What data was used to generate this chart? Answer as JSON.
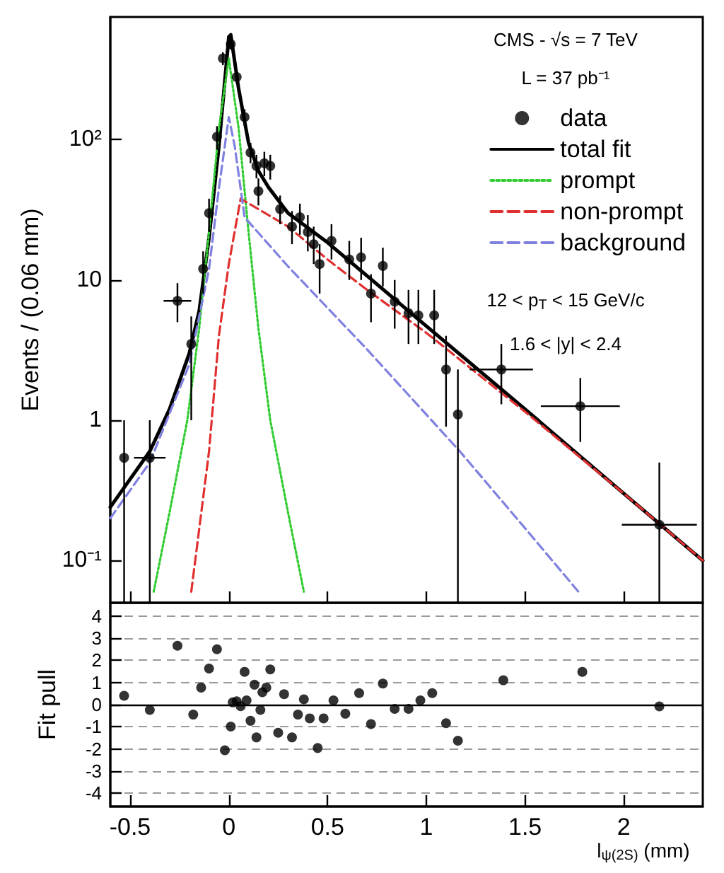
{
  "chart_data": [
    {
      "type": "scatter",
      "ylabel": "Events / (0.06 mm)",
      "xlim": [
        -0.6,
        2.4
      ],
      "xticks": [
        -0.5,
        0,
        0.5,
        1,
        1.5,
        2
      ],
      "ylim": [
        0.05,
        750
      ],
      "yticks": [
        {
          "value": 0.1,
          "label": "10⁻¹"
        },
        1,
        10,
        {
          "value": 100,
          "label": "10²"
        }
      ],
      "log": "y",
      "tick_labels": "y",
      "legend": "top right",
      "annotations": [
        "CMS - √s = 7 TeV",
        "L = 37 pb⁻¹",
        "12 < p$_{T}$ < 15 GeV/c",
        "1.6 < |y| < 2.4"
      ],
      "series": [
        {
          "name": "data",
          "type": "scatter",
          "marker": "circle",
          "color": "#000000",
          "x": [
            -0.53,
            -0.4,
            -0.26,
            -0.19,
            -0.13,
            -0.1,
            -0.06,
            -0.03,
            0.01,
            0.04,
            0.08,
            0.11,
            0.14,
            0.15,
            0.18,
            0.21,
            0.26,
            0.32,
            0.36,
            0.4,
            0.43,
            0.46,
            0.52,
            0.61,
            0.67,
            0.72,
            0.78,
            0.84,
            0.91,
            0.96,
            1.04,
            1.1,
            1.16,
            1.38,
            1.78,
            2.18
          ],
          "values": [
            0.54,
            0.54,
            7.1,
            3.5,
            12,
            30,
            105,
            380,
            480,
            280,
            145,
            81,
            65,
            43,
            68,
            65,
            32,
            24,
            28,
            22,
            18,
            13,
            19,
            14,
            14.5,
            8,
            12.6,
            7,
            5.8,
            5.6,
            5.6,
            2.3,
            1.1,
            2.3,
            1.26,
            0.18
          ],
          "errors": [
            [
              0.05,
              1.0
            ],
            [
              0.05,
              1.0
            ],
            [
              5,
              9.5
            ],
            [
              1.0,
              5.5
            ],
            [
              8,
              16
            ],
            [
              22,
              38
            ],
            [
              85,
              125
            ],
            [
              340,
              420
            ],
            [
              440,
              530
            ],
            [
              250,
              310
            ],
            [
              125,
              165
            ],
            [
              68,
              95
            ],
            [
              53,
              78
            ],
            [
              34,
              53
            ],
            [
              55,
              82
            ],
            [
              52,
              78
            ],
            [
              25,
              40
            ],
            [
              18,
              31
            ],
            [
              21,
              35
            ],
            [
              16,
              29
            ],
            [
              13,
              24
            ],
            [
              8,
              18
            ],
            [
              14,
              25
            ],
            [
              10,
              19
            ],
            [
              10,
              20
            ],
            [
              5,
              11
            ],
            [
              9,
              17
            ],
            [
              4.5,
              10
            ],
            [
              3.5,
              8.5
            ],
            [
              3.5,
              8.5
            ],
            [
              3.5,
              8.5
            ],
            [
              0.9,
              4
            ],
            [
              0.05,
              2.3
            ],
            [
              1.3,
              3.5
            ],
            [
              0.7,
              2
            ],
            [
              0.05,
              0.5
            ]
          ],
          "xerrors": [
            null,
            0.08,
            0.07,
            null,
            null,
            null,
            null,
            null,
            null,
            null,
            null,
            null,
            null,
            null,
            null,
            null,
            null,
            null,
            null,
            null,
            null,
            null,
            null,
            null,
            null,
            null,
            null,
            null,
            null,
            null,
            null,
            null,
            null,
            0.16,
            0.2,
            0.19
          ]
        },
        {
          "name": "total fit",
          "type": "line",
          "marker": "none",
          "line_style": "solid",
          "color": "#000000",
          "x": [
            -0.6,
            -0.5,
            -0.4,
            -0.3,
            -0.2,
            -0.15,
            -0.1,
            -0.05,
            0,
            0.01,
            0.05,
            0.1,
            0.15,
            0.2,
            0.3,
            0.5,
            0.7,
            1.0,
            1.5,
            2.0,
            2.4
          ],
          "values": [
            0.24,
            0.38,
            0.6,
            1.2,
            3,
            6,
            20,
            90,
            540,
            560,
            230,
            95,
            60,
            46,
            30,
            18.5,
            10.7,
            4.7,
            1.2,
            0.3,
            0.1
          ]
        },
        {
          "name": "prompt",
          "type": "line",
          "marker": "none",
          "line_style": "dotted",
          "color": "#33cc33",
          "x": [
            -0.38,
            -0.3,
            -0.21,
            -0.15,
            -0.1,
            -0.05,
            0,
            0.05,
            0.1,
            0.15,
            0.21,
            0.3,
            0.38
          ],
          "values": [
            0.06,
            0.22,
            1,
            4.5,
            22,
            120,
            380,
            120,
            22,
            4.5,
            1,
            0.22,
            0.06
          ]
        },
        {
          "name": "non-prompt",
          "type": "line",
          "marker": "none",
          "line_style": "dashed",
          "color": "#e03030",
          "x": [
            -0.19,
            -0.1,
            -0.05,
            0,
            0.06,
            0.3,
            0.5,
            0.7,
            1.0,
            1.5,
            2.0,
            2.4
          ],
          "values": [
            0.06,
            0.6,
            4,
            13,
            38,
            24,
            14,
            8.5,
            4.2,
            1.15,
            0.3,
            0.1
          ]
        },
        {
          "name": "background",
          "type": "line",
          "marker": "none",
          "line_style": "dashed",
          "color": "#8080e0",
          "x": [
            -0.6,
            -0.4,
            -0.2,
            -0.1,
            -0.05,
            0,
            0.03,
            0.08,
            0.3,
            0.7,
            1.17,
            1.5,
            1.77
          ],
          "values": [
            0.2,
            0.5,
            2.5,
            12,
            45,
            145,
            90,
            28,
            12.5,
            3.2,
            0.6,
            0.17,
            0.06
          ]
        }
      ]
    },
    {
      "type": "scatter",
      "ylabel": "Fit pull",
      "xlabel": "l$_{ψ(2S)}$ (mm)",
      "xlim": [
        -0.6,
        2.4
      ],
      "xticks": [
        -0.5,
        0,
        0.5,
        1,
        1.5,
        2
      ],
      "ylim": [
        -4.6,
        4.6
      ],
      "yticks": [
        -4,
        -3,
        -2,
        -1,
        0,
        1,
        2,
        3,
        4
      ],
      "grid": "y",
      "marker": "circle",
      "color": "#000000",
      "ref_lines": [
        {
          "axis": "y",
          "value": 0,
          "color": "#000000",
          "line_style": "solid"
        }
      ],
      "x": [
        -0.53,
        -0.4,
        -0.26,
        -0.18,
        -0.14,
        -0.1,
        -0.06,
        -0.02,
        0.01,
        0.02,
        0.04,
        0.06,
        0.08,
        0.09,
        0.11,
        0.13,
        0.14,
        0.16,
        0.17,
        0.19,
        0.21,
        0.25,
        0.28,
        0.32,
        0.35,
        0.38,
        0.41,
        0.45,
        0.48,
        0.53,
        0.59,
        0.66,
        0.72,
        0.78,
        0.84,
        0.91,
        0.97,
        1.03,
        1.1,
        1.16,
        1.39,
        1.79,
        2.18
      ],
      "values": [
        0.4,
        -0.24,
        2.66,
        -0.45,
        0.77,
        1.63,
        2.5,
        -2.06,
        -0.99,
        0.1,
        0.15,
        -0.07,
        1.48,
        0.19,
        -0.73,
        0.9,
        -1.48,
        -0.24,
        0.56,
        0.77,
        1.59,
        -1.27,
        0.47,
        -1.48,
        -0.45,
        0.24,
        -0.62,
        -1.96,
        -0.62,
        0.19,
        -0.41,
        0.52,
        -0.88,
        0.95,
        -0.19,
        -0.19,
        0.19,
        0.52,
        -0.84,
        -1.63,
        1.1,
        1.48,
        -0.08
      ]
    }
  ]
}
